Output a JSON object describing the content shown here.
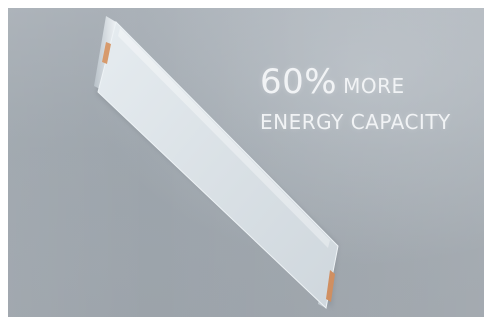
{
  "headline": {
    "percent": "60%",
    "more": "MORE",
    "line2": "ENERGY CAPACITY"
  },
  "colors": {
    "background": "#a0a7ae",
    "cell_face": "#dfe5ea",
    "cell_tab": "#d79a6c",
    "text": "#f1f3f5"
  }
}
